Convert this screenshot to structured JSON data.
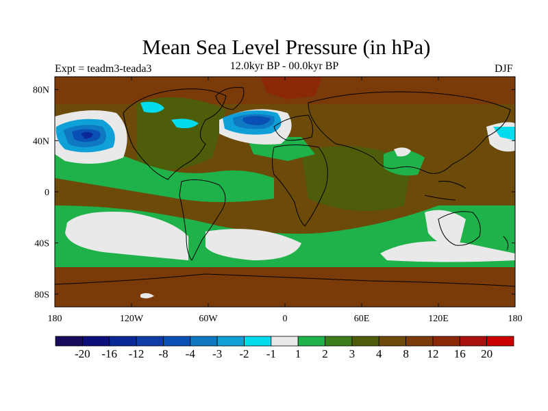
{
  "title": "Mean Sea Level Pressure (in hPa)",
  "left_label": "Expt = teadm3-teada3",
  "center_label": "12.0kyr BP - 00.0kyr BP",
  "right_label": "DJF",
  "lat_ticks": [
    {
      "label": "80N",
      "lat": 80
    },
    {
      "label": "40N",
      "lat": 40
    },
    {
      "label": "0",
      "lat": 0
    },
    {
      "label": "40S",
      "lat": -40
    },
    {
      "label": "80S",
      "lat": -80
    }
  ],
  "lon_ticks": [
    {
      "label": "180",
      "lon": -180
    },
    {
      "label": "120W",
      "lon": -120
    },
    {
      "label": "60W",
      "lon": -60
    },
    {
      "label": "0",
      "lon": 0
    },
    {
      "label": "60E",
      "lon": 60
    },
    {
      "label": "120E",
      "lon": 120
    },
    {
      "label": "180",
      "lon": 180
    }
  ],
  "colorbar": {
    "colors": [
      "#1a0a5e",
      "#0c0f7a",
      "#0a2896",
      "#0f3ca5",
      "#0a50b4",
      "#0f78c3",
      "#0ea0d7",
      "#00dcee",
      "#e9e9e9",
      "#1fb24a",
      "#3d7d1a",
      "#4d5d0a",
      "#6b4a0a",
      "#7a3a0a",
      "#8a2808",
      "#aa1010",
      "#cc0000"
    ],
    "labels": [
      "-20",
      "-16",
      "-12",
      "-8",
      "-4",
      "-3",
      "-2",
      "-1",
      "1",
      "2",
      "3",
      "4",
      "8",
      "12",
      "16",
      "20"
    ]
  }
}
